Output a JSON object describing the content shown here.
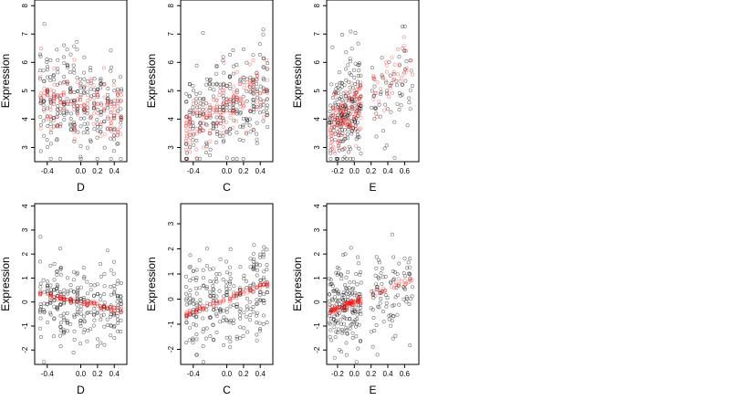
{
  "colors": {
    "black_points": "#000000",
    "red_points": "#ff0000",
    "frame": "#000000"
  },
  "chart_data": [
    {
      "type": "scatter",
      "row": 0,
      "col": 0,
      "xlabel": "D",
      "ylabel": "Expression",
      "xlim": [
        -0.55,
        0.55
      ],
      "ylim": [
        2.5,
        8.2
      ],
      "xticks": [
        -0.4,
        0.0,
        0.2,
        0.4
      ],
      "yticks": [
        3,
        4,
        5,
        6,
        7,
        8
      ],
      "grid": false,
      "gen": {
        "kind": "D",
        "seed": 11,
        "n_black": 260,
        "n_red": 150,
        "center": 4.5,
        "slope": -0.6,
        "spread": 0.9
      }
    },
    {
      "type": "scatter",
      "row": 0,
      "col": 1,
      "xlabel": "C",
      "ylabel": "Expression",
      "xlim": [
        -0.55,
        0.55
      ],
      "ylim": [
        2.5,
        8.2
      ],
      "xticks": [
        -0.4,
        0.0,
        0.2,
        0.4
      ],
      "yticks": [
        3,
        4,
        5,
        6,
        7,
        8
      ],
      "grid": false,
      "gen": {
        "kind": "C",
        "seed": 23,
        "n_black": 260,
        "n_red": 160,
        "center": 4.4,
        "slope": 1.8,
        "spread": 0.9
      }
    },
    {
      "type": "scatter",
      "row": 0,
      "col": 2,
      "xlabel": "E",
      "ylabel": "Expression",
      "xlim": [
        -0.33,
        0.77
      ],
      "ylim": [
        2.5,
        8.2
      ],
      "xticks": [
        -0.2,
        0.0,
        0.2,
        0.4,
        0.6
      ],
      "yticks": [
        3,
        4,
        5,
        6,
        7,
        8
      ],
      "grid": false,
      "gen": {
        "kind": "E",
        "seed": 37,
        "n_black": 260,
        "n_red": 170,
        "center": 4.4,
        "slope": 2.5,
        "spread": 0.9
      }
    },
    {
      "type": "scatter",
      "row": 1,
      "col": 0,
      "xlabel": "D",
      "ylabel": "Expression",
      "xlim": [
        -0.55,
        0.55
      ],
      "ylim": [
        -2.6,
        4.1
      ],
      "xticks": [
        -0.4,
        0.0,
        0.2,
        0.4
      ],
      "yticks": [
        -2,
        -1,
        0,
        1,
        2,
        3,
        4
      ],
      "grid": false,
      "gen": {
        "kind": "D",
        "seed": 41,
        "n_black": 260,
        "n_red": 90,
        "center": 0.0,
        "slope": -0.75,
        "spread": 0.9,
        "tight": true
      }
    },
    {
      "type": "scatter",
      "row": 1,
      "col": 1,
      "xlabel": "C",
      "ylabel": "Expression",
      "xlim": [
        -0.55,
        0.55
      ],
      "ylim": [
        -2.6,
        3.8
      ],
      "xticks": [
        -0.4,
        0.0,
        0.2,
        0.4
      ],
      "yticks": [
        -2,
        -1,
        0,
        1,
        2,
        3
      ],
      "grid": false,
      "gen": {
        "kind": "C",
        "seed": 53,
        "n_black": 260,
        "n_red": 90,
        "center": 0.0,
        "slope": 1.25,
        "spread": 0.9,
        "tight": true
      }
    },
    {
      "type": "scatter",
      "row": 1,
      "col": 2,
      "xlabel": "E",
      "ylabel": "Expression",
      "xlim": [
        -0.33,
        0.77
      ],
      "ylim": [
        -2.6,
        4.1
      ],
      "xticks": [
        -0.2,
        0.0,
        0.2,
        0.4,
        0.6
      ],
      "yticks": [
        -2,
        -1,
        0,
        1,
        2,
        3,
        4
      ],
      "grid": false,
      "gen": {
        "kind": "E",
        "seed": 67,
        "n_black": 260,
        "n_red": 110,
        "center": 0.0,
        "slope": 1.4,
        "spread": 0.9,
        "tight": true
      }
    }
  ]
}
